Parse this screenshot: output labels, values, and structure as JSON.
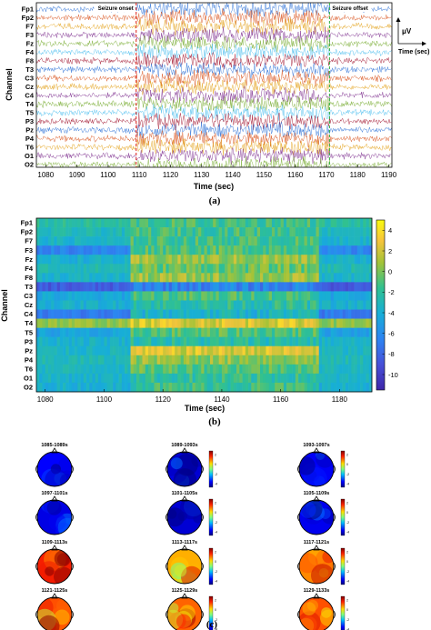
{
  "chart_data": [
    {
      "type": "line",
      "panel_label": "(a)",
      "xlabel": "Time (sec)",
      "ylabel": "Channel",
      "xlim": [
        1077,
        1191
      ],
      "x_ticks": [
        1080,
        1090,
        1100,
        1110,
        1120,
        1130,
        1140,
        1150,
        1160,
        1170,
        1180,
        1190
      ],
      "channels": [
        "Fp1",
        "Fp2",
        "F7",
        "F3",
        "Fz",
        "F4",
        "F8",
        "T3",
        "C3",
        "Cz",
        "C4",
        "T4",
        "T5",
        "P3",
        "Pz",
        "P4",
        "T6",
        "O1",
        "O2"
      ],
      "series_colors": [
        "#2a6fd6",
        "#d9531e",
        "#e3a21a",
        "#7e2f8e",
        "#77ac30",
        "#4dbeee",
        "#a2142f"
      ],
      "annotations": [
        {
          "text": "Seizure onset",
          "x": 1109,
          "color": "#e0302a"
        },
        {
          "text": "Seizure offset",
          "x": 1171,
          "color": "#3cb44b"
        }
      ],
      "scale_bar": {
        "y_label": "μV",
        "x_label": "Time (sec)"
      }
    },
    {
      "type": "heatmap",
      "panel_label": "(b)",
      "xlabel": "Time (sec)",
      "ylabel": "Channel",
      "xlim": [
        1077,
        1191
      ],
      "x_ticks": [
        1080,
        1100,
        1120,
        1140,
        1160,
        1180
      ],
      "channels": [
        "Fp1",
        "Fp2",
        "F7",
        "F3",
        "Fz",
        "F4",
        "F8",
        "T3",
        "C3",
        "Cz",
        "C4",
        "T4",
        "T5",
        "P3",
        "Pz",
        "P4",
        "T6",
        "O1",
        "O2"
      ],
      "seizure_window": [
        1109,
        1173
      ],
      "channel_levels_pre": [
        -2.2,
        -3.0,
        -3.6,
        -6.5,
        -3.8,
        -2.8,
        -3.6,
        -8.5,
        -4.5,
        -3.8,
        -7.0,
        0.5,
        -4.8,
        -3.6,
        -3.4,
        -3.0,
        -3.2,
        -3.6,
        -3.8
      ],
      "channel_levels_seizure": [
        -1.4,
        -1.4,
        -1.4,
        -1.0,
        0.6,
        -0.5,
        0.6,
        -6.5,
        -1.2,
        -2.2,
        -3.5,
        2.4,
        -1.0,
        -2.4,
        2.2,
        0.5,
        -0.8,
        -2.0,
        -1.5
      ],
      "colorbar": {
        "range": [
          -11.5,
          5
        ],
        "ticks": [
          4,
          2,
          0,
          -2,
          -4,
          -6,
          -8,
          -10
        ]
      }
    },
    {
      "type": "heatmap",
      "panel_label": "(c)",
      "description": "scalp topographic maps",
      "colorbar_ticks": [
        "2",
        "0",
        "-2",
        "-4"
      ],
      "maps": [
        {
          "title": "1085-1089s",
          "level": 0.15
        },
        {
          "title": "1089-1093s",
          "level": 0.1
        },
        {
          "title": "1093-1097s",
          "level": 0.14
        },
        {
          "title": "1097-1101s",
          "level": 0.12
        },
        {
          "title": "1101-1105s",
          "level": 0.1
        },
        {
          "title": "1105-1109s",
          "level": 0.13
        },
        {
          "title": "1109-1113s",
          "level": 0.86
        },
        {
          "title": "1113-1117s",
          "level": 0.7
        },
        {
          "title": "1117-1121s",
          "level": 0.74
        },
        {
          "title": "1121-1125s",
          "level": 0.8
        },
        {
          "title": "1125-1129s",
          "level": 0.78
        },
        {
          "title": "1129-1133s",
          "level": 0.8
        }
      ]
    }
  ]
}
